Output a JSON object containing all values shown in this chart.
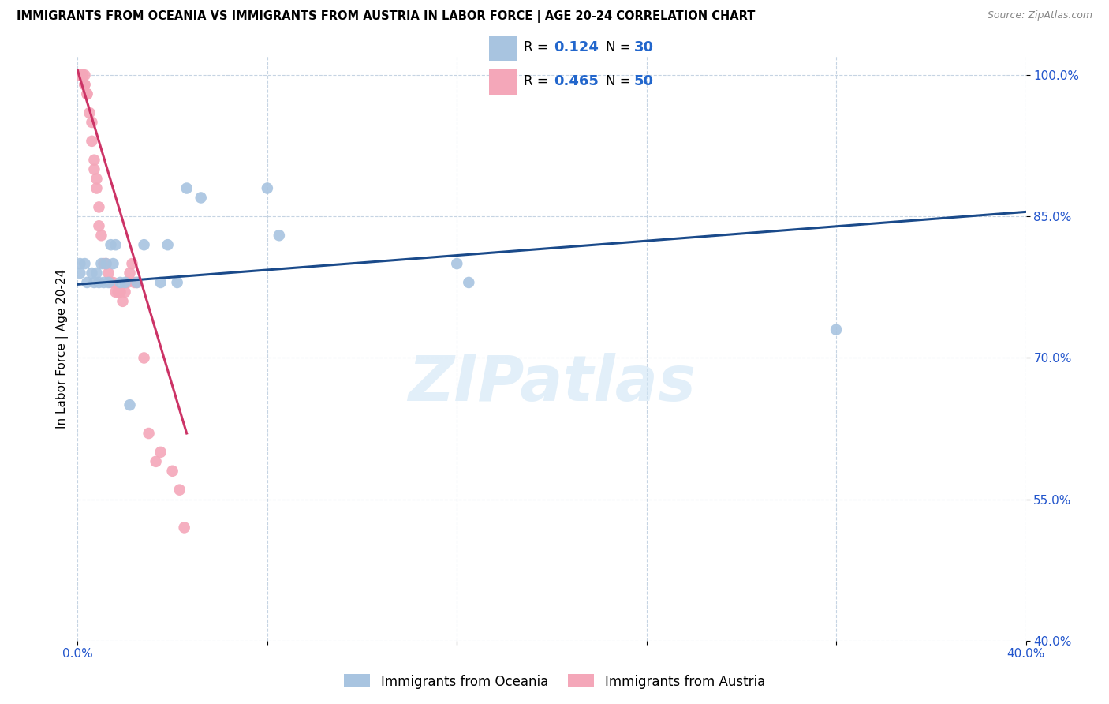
{
  "title": "IMMIGRANTS FROM OCEANIA VS IMMIGRANTS FROM AUSTRIA IN LABOR FORCE | AGE 20-24 CORRELATION CHART",
  "source": "Source: ZipAtlas.com",
  "ylabel": "In Labor Force | Age 20-24",
  "xlim": [
    0.0,
    0.4
  ],
  "ylim": [
    0.4,
    1.02
  ],
  "xticks": [
    0.0,
    0.08,
    0.16,
    0.24,
    0.32,
    0.4
  ],
  "xticklabels": [
    "0.0%",
    "",
    "",
    "",
    "",
    "40.0%"
  ],
  "yticks": [
    0.4,
    0.55,
    0.7,
    0.85,
    1.0
  ],
  "yticklabels": [
    "40.0%",
    "55.0%",
    "70.0%",
    "85.0%",
    "100.0%"
  ],
  "blue_color": "#a8c4e0",
  "pink_color": "#f4a7b9",
  "blue_line_color": "#1a4a8a",
  "pink_line_color": "#cc3366",
  "watermark": "ZIPatlas",
  "blue_scatter_x": [
    0.001,
    0.001,
    0.003,
    0.004,
    0.006,
    0.007,
    0.008,
    0.009,
    0.01,
    0.011,
    0.012,
    0.013,
    0.014,
    0.015,
    0.016,
    0.018,
    0.02,
    0.022,
    0.025,
    0.028,
    0.035,
    0.038,
    0.042,
    0.046,
    0.052,
    0.08,
    0.085,
    0.16,
    0.165,
    0.32
  ],
  "blue_scatter_y": [
    0.8,
    0.79,
    0.8,
    0.78,
    0.79,
    0.78,
    0.79,
    0.78,
    0.8,
    0.78,
    0.8,
    0.78,
    0.82,
    0.8,
    0.82,
    0.78,
    0.78,
    0.65,
    0.78,
    0.82,
    0.78,
    0.82,
    0.78,
    0.88,
    0.87,
    0.88,
    0.83,
    0.8,
    0.78,
    0.73
  ],
  "pink_scatter_x": [
    0.001,
    0.001,
    0.001,
    0.001,
    0.001,
    0.001,
    0.001,
    0.001,
    0.002,
    0.002,
    0.002,
    0.002,
    0.002,
    0.003,
    0.003,
    0.003,
    0.004,
    0.004,
    0.005,
    0.006,
    0.006,
    0.007,
    0.007,
    0.008,
    0.008,
    0.009,
    0.009,
    0.01,
    0.011,
    0.012,
    0.013,
    0.014,
    0.015,
    0.016,
    0.017,
    0.018,
    0.019,
    0.02,
    0.021,
    0.022,
    0.023,
    0.024,
    0.025,
    0.028,
    0.03,
    0.033,
    0.035,
    0.04,
    0.043,
    0.045
  ],
  "pink_scatter_y": [
    1.0,
    1.0,
    1.0,
    1.0,
    1.0,
    1.0,
    1.0,
    1.0,
    1.0,
    1.0,
    1.0,
    1.0,
    1.0,
    1.0,
    0.99,
    0.99,
    0.98,
    0.98,
    0.96,
    0.95,
    0.93,
    0.91,
    0.9,
    0.89,
    0.88,
    0.86,
    0.84,
    0.83,
    0.8,
    0.8,
    0.79,
    0.78,
    0.78,
    0.77,
    0.77,
    0.77,
    0.76,
    0.77,
    0.78,
    0.79,
    0.8,
    0.78,
    0.78,
    0.7,
    0.62,
    0.59,
    0.6,
    0.58,
    0.56,
    0.52
  ],
  "blue_trendline_x": [
    0.0,
    0.4
  ],
  "blue_trendline_y": [
    0.778,
    0.855
  ],
  "pink_trendline_x": [
    0.0,
    0.046
  ],
  "pink_trendline_y": [
    1.005,
    0.62
  ],
  "bottom_legend_blue": "Immigrants from Oceania",
  "bottom_legend_pink": "Immigrants from Austria"
}
